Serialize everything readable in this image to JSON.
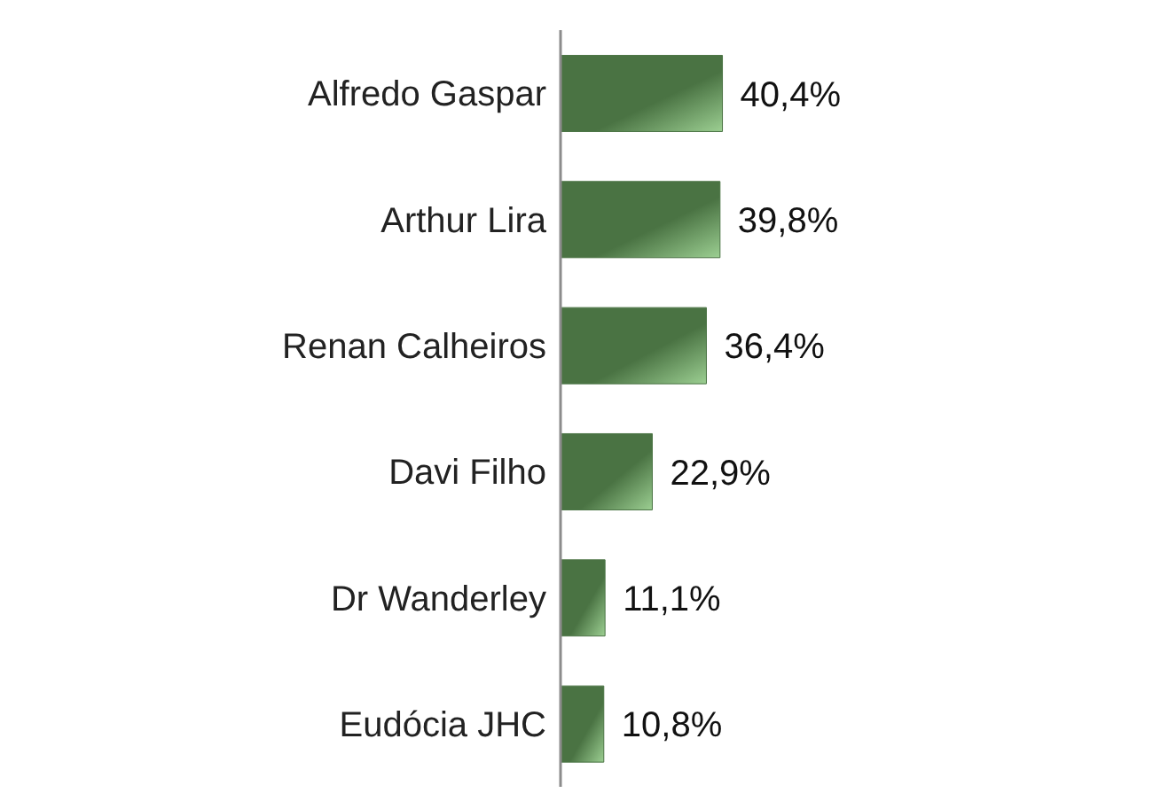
{
  "chart_data": {
    "type": "bar",
    "orientation": "horizontal",
    "categories": [
      "Alfredo Gaspar",
      "Arthur Lira",
      "Renan Calheiros",
      "Davi Filho",
      "Dr Wanderley",
      "Eudócia JHC"
    ],
    "values": [
      40.4,
      39.8,
      36.4,
      22.9,
      11.1,
      10.8
    ],
    "value_labels": [
      "40,4%",
      "39,8%",
      "36,4%",
      "22,9%",
      "11,1%",
      "10,8%"
    ],
    "color": "#4a7343",
    "grid": false,
    "legend": false
  }
}
